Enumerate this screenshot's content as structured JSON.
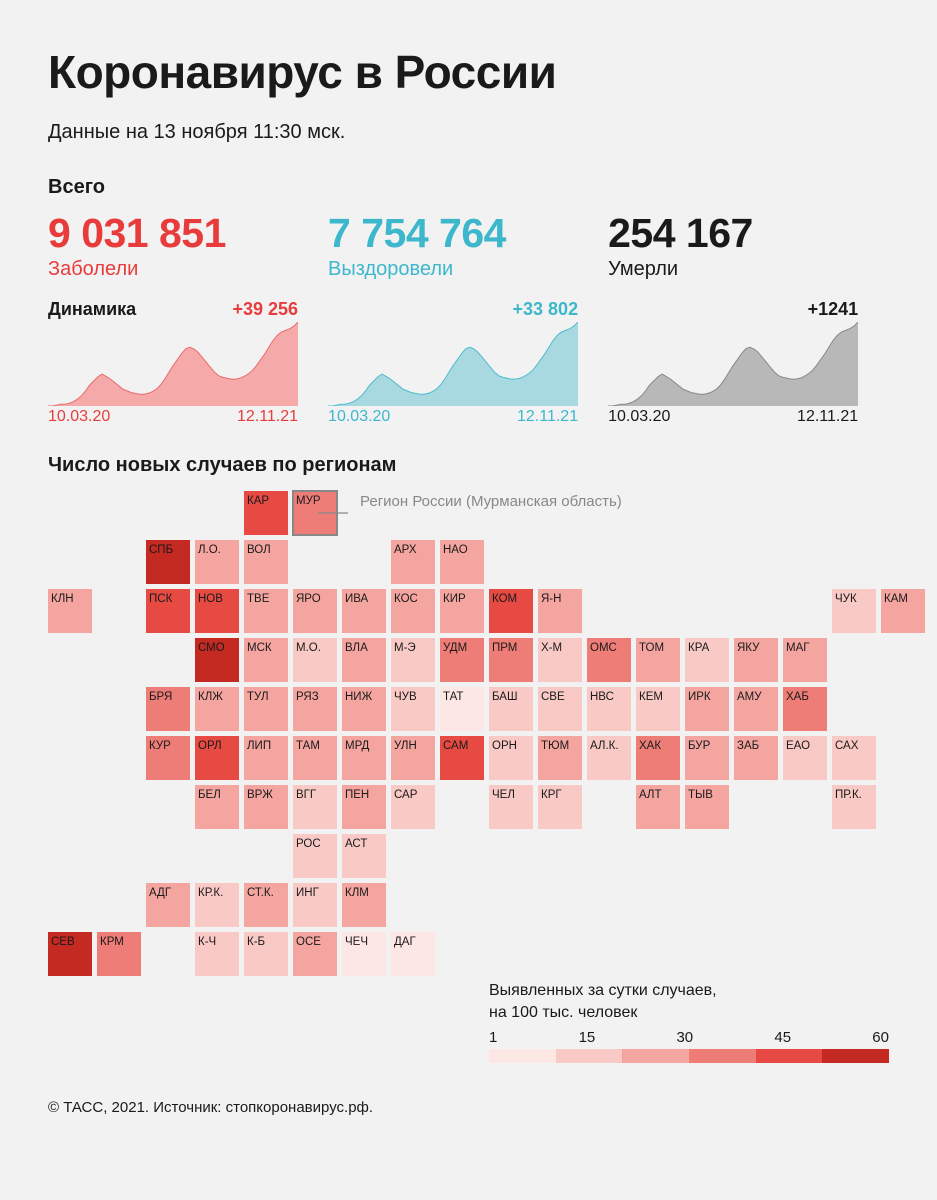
{
  "background_color": "#f2f2f2",
  "title": "Коронавирус в России",
  "subtitle": "Данные на 13 ноября 11:30 мск.",
  "total_label": "Всего",
  "dynamics_label": "Динамика",
  "stats": [
    {
      "value": "9 031 851",
      "label": "Заболели",
      "color": "#e83c3c",
      "delta": "+39 256",
      "date_color": "#e83c3c",
      "spark_fill": "#f5a9a9",
      "spark_stroke": "#e86c6c"
    },
    {
      "value": "7 754 764",
      "label": "Выздоровели",
      "color": "#3cb7cc",
      "delta": "+33 802",
      "date_color": "#3cb7cc",
      "spark_fill": "#a8d8e0",
      "spark_stroke": "#4fbcd0"
    },
    {
      "value": "254 167",
      "label": "Умерли",
      "color": "#1a1a1a",
      "delta": "+1241",
      "date_color": "#1a1a1a",
      "spark_fill": "#b8b8b8",
      "spark_stroke": "#888888"
    }
  ],
  "date_start": "10.03.20",
  "date_end": "12.11.21",
  "spark_values": [
    0,
    0,
    1,
    2,
    2,
    3,
    5,
    8,
    12,
    18,
    25,
    30,
    35,
    38,
    35,
    32,
    28,
    24,
    20,
    18,
    16,
    15,
    14,
    14,
    15,
    17,
    20,
    25,
    32,
    40,
    48,
    55,
    62,
    68,
    70,
    68,
    64,
    58,
    52,
    46,
    40,
    36,
    34,
    33,
    32,
    32,
    33,
    35,
    38,
    42,
    48,
    55,
    62,
    70,
    78,
    84,
    88,
    90,
    92,
    95,
    100
  ],
  "map_title": "Число новых случаев по регионам",
  "callout_text": "Регион России (Мурманская область)",
  "color_scale": {
    "1": "#fde7e5",
    "2": "#f9c9c5",
    "3": "#f4a5a0",
    "4": "#ef7d77",
    "5": "#e74a42",
    "6": "#c42a22"
  },
  "regions": [
    {
      "r": 0,
      "c": 4,
      "l": "КАР",
      "v": 5
    },
    {
      "r": 0,
      "c": 5,
      "l": "МУР",
      "v": 4,
      "outline": true
    },
    {
      "r": 1,
      "c": 2,
      "l": "СПБ",
      "v": 6
    },
    {
      "r": 1,
      "c": 3,
      "l": "Л.О.",
      "v": 3
    },
    {
      "r": 1,
      "c": 4,
      "l": "ВОЛ",
      "v": 3
    },
    {
      "r": 1,
      "c": 7,
      "l": "АРХ",
      "v": 3
    },
    {
      "r": 1,
      "c": 8,
      "l": "НАО",
      "v": 3
    },
    {
      "r": 2,
      "c": 0,
      "l": "КЛН",
      "v": 3
    },
    {
      "r": 2,
      "c": 2,
      "l": "ПСК",
      "v": 5
    },
    {
      "r": 2,
      "c": 3,
      "l": "НОВ",
      "v": 5
    },
    {
      "r": 2,
      "c": 4,
      "l": "ТВЕ",
      "v": 3
    },
    {
      "r": 2,
      "c": 5,
      "l": "ЯРО",
      "v": 3
    },
    {
      "r": 2,
      "c": 6,
      "l": "ИВА",
      "v": 3
    },
    {
      "r": 2,
      "c": 7,
      "l": "КОС",
      "v": 3
    },
    {
      "r": 2,
      "c": 8,
      "l": "КИР",
      "v": 3
    },
    {
      "r": 2,
      "c": 9,
      "l": "КОМ",
      "v": 5
    },
    {
      "r": 2,
      "c": 10,
      "l": "Я-Н",
      "v": 3
    },
    {
      "r": 2,
      "c": 16,
      "l": "ЧУК",
      "v": 2
    },
    {
      "r": 2,
      "c": 17,
      "l": "КАМ",
      "v": 3
    },
    {
      "r": 3,
      "c": 3,
      "l": "СМО",
      "v": 6
    },
    {
      "r": 3,
      "c": 4,
      "l": "МСК",
      "v": 3
    },
    {
      "r": 3,
      "c": 5,
      "l": "М.О.",
      "v": 2
    },
    {
      "r": 3,
      "c": 6,
      "l": "ВЛА",
      "v": 3
    },
    {
      "r": 3,
      "c": 7,
      "l": "М-Э",
      "v": 2
    },
    {
      "r": 3,
      "c": 8,
      "l": "УДМ",
      "v": 4
    },
    {
      "r": 3,
      "c": 9,
      "l": "ПРМ",
      "v": 4
    },
    {
      "r": 3,
      "c": 10,
      "l": "Х-М",
      "v": 2
    },
    {
      "r": 3,
      "c": 11,
      "l": "ОМС",
      "v": 4
    },
    {
      "r": 3,
      "c": 12,
      "l": "ТОМ",
      "v": 3
    },
    {
      "r": 3,
      "c": 13,
      "l": "КРА",
      "v": 2
    },
    {
      "r": 3,
      "c": 14,
      "l": "ЯКУ",
      "v": 3
    },
    {
      "r": 3,
      "c": 15,
      "l": "МАГ",
      "v": 3
    },
    {
      "r": 4,
      "c": 2,
      "l": "БРЯ",
      "v": 4
    },
    {
      "r": 4,
      "c": 3,
      "l": "КЛЖ",
      "v": 3
    },
    {
      "r": 4,
      "c": 4,
      "l": "ТУЛ",
      "v": 3
    },
    {
      "r": 4,
      "c": 5,
      "l": "РЯЗ",
      "v": 3
    },
    {
      "r": 4,
      "c": 6,
      "l": "НИЖ",
      "v": 3
    },
    {
      "r": 4,
      "c": 7,
      "l": "ЧУВ",
      "v": 2
    },
    {
      "r": 4,
      "c": 8,
      "l": "ТАТ",
      "v": 1
    },
    {
      "r": 4,
      "c": 9,
      "l": "БАШ",
      "v": 2
    },
    {
      "r": 4,
      "c": 10,
      "l": "СВЕ",
      "v": 2
    },
    {
      "r": 4,
      "c": 11,
      "l": "НВС",
      "v": 2
    },
    {
      "r": 4,
      "c": 12,
      "l": "КЕМ",
      "v": 2
    },
    {
      "r": 4,
      "c": 13,
      "l": "ИРК",
      "v": 3
    },
    {
      "r": 4,
      "c": 14,
      "l": "АМУ",
      "v": 3
    },
    {
      "r": 4,
      "c": 15,
      "l": "ХАБ",
      "v": 4
    },
    {
      "r": 5,
      "c": 2,
      "l": "КУР",
      "v": 4
    },
    {
      "r": 5,
      "c": 3,
      "l": "ОРЛ",
      "v": 5
    },
    {
      "r": 5,
      "c": 4,
      "l": "ЛИП",
      "v": 3
    },
    {
      "r": 5,
      "c": 5,
      "l": "ТАМ",
      "v": 3
    },
    {
      "r": 5,
      "c": 6,
      "l": "МРД",
      "v": 3
    },
    {
      "r": 5,
      "c": 7,
      "l": "УЛН",
      "v": 3
    },
    {
      "r": 5,
      "c": 8,
      "l": "САМ",
      "v": 5
    },
    {
      "r": 5,
      "c": 9,
      "l": "ОРН",
      "v": 2
    },
    {
      "r": 5,
      "c": 10,
      "l": "ТЮМ",
      "v": 3
    },
    {
      "r": 5,
      "c": 11,
      "l": "АЛ.К.",
      "v": 2
    },
    {
      "r": 5,
      "c": 12,
      "l": "ХАК",
      "v": 4
    },
    {
      "r": 5,
      "c": 13,
      "l": "БУР",
      "v": 3
    },
    {
      "r": 5,
      "c": 14,
      "l": "ЗАБ",
      "v": 3
    },
    {
      "r": 5,
      "c": 15,
      "l": "ЕАО",
      "v": 2
    },
    {
      "r": 5,
      "c": 16,
      "l": "САХ",
      "v": 2
    },
    {
      "r": 6,
      "c": 3,
      "l": "БЕЛ",
      "v": 3
    },
    {
      "r": 6,
      "c": 4,
      "l": "ВРЖ",
      "v": 3
    },
    {
      "r": 6,
      "c": 5,
      "l": "ВГГ",
      "v": 2
    },
    {
      "r": 6,
      "c": 6,
      "l": "ПЕН",
      "v": 3
    },
    {
      "r": 6,
      "c": 7,
      "l": "САР",
      "v": 2
    },
    {
      "r": 6,
      "c": 9,
      "l": "ЧЕЛ",
      "v": 2
    },
    {
      "r": 6,
      "c": 10,
      "l": "КРГ",
      "v": 2
    },
    {
      "r": 6,
      "c": 12,
      "l": "АЛТ",
      "v": 3
    },
    {
      "r": 6,
      "c": 13,
      "l": "ТЫВ",
      "v": 3
    },
    {
      "r": 6,
      "c": 16,
      "l": "ПР.К.",
      "v": 2
    },
    {
      "r": 7,
      "c": 5,
      "l": "РОС",
      "v": 2
    },
    {
      "r": 7,
      "c": 6,
      "l": "АСТ",
      "v": 2
    },
    {
      "r": 8,
      "c": 2,
      "l": "АДГ",
      "v": 3
    },
    {
      "r": 8,
      "c": 3,
      "l": "КР.К.",
      "v": 2
    },
    {
      "r": 8,
      "c": 4,
      "l": "СТ.К.",
      "v": 3
    },
    {
      "r": 8,
      "c": 5,
      "l": "ИНГ",
      "v": 2
    },
    {
      "r": 8,
      "c": 6,
      "l": "КЛМ",
      "v": 3
    },
    {
      "r": 9,
      "c": 0,
      "l": "СЕВ",
      "v": 6
    },
    {
      "r": 9,
      "c": 1,
      "l": "КРМ",
      "v": 4
    },
    {
      "r": 9,
      "c": 3,
      "l": "К-Ч",
      "v": 2
    },
    {
      "r": 9,
      "c": 4,
      "l": "К-Б",
      "v": 2
    },
    {
      "r": 9,
      "c": 5,
      "l": "ОСЕ",
      "v": 3
    },
    {
      "r": 9,
      "c": 6,
      "l": "ЧЕЧ",
      "v": 1
    },
    {
      "r": 9,
      "c": 7,
      "l": "ДАГ",
      "v": 1
    }
  ],
  "legend": {
    "title_l1": "Выявленных за сутки случаев,",
    "title_l2": "на 100 тыс. человек",
    "ticks": [
      "1",
      "15",
      "30",
      "45",
      "60"
    ],
    "colors": [
      "#fde7e5",
      "#f9c9c5",
      "#f4a5a0",
      "#ef7d77",
      "#e74a42",
      "#c42a22"
    ]
  },
  "footer": "© ТАСС, 2021. Источник: стопкоронавирус.рф."
}
